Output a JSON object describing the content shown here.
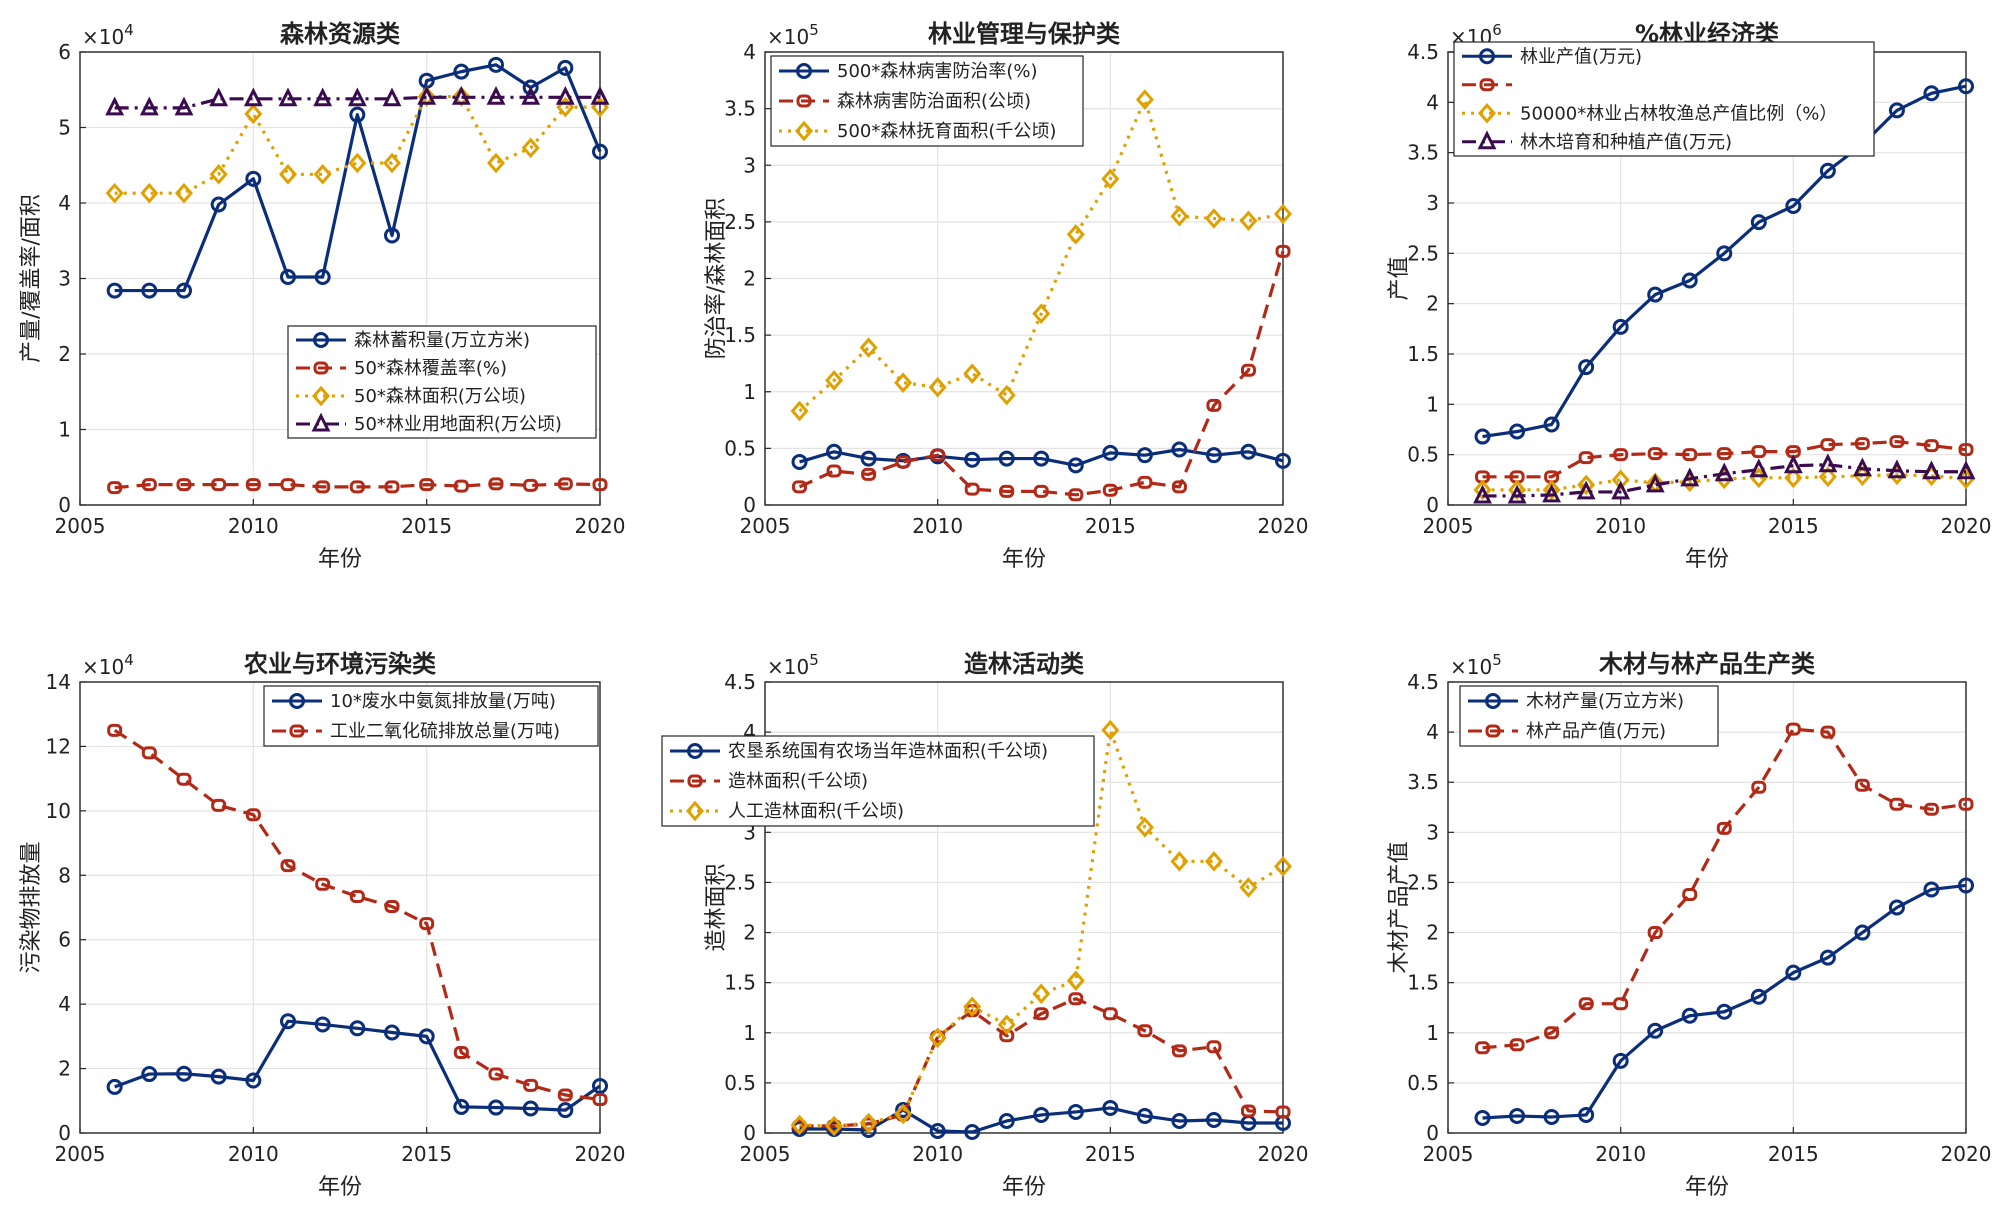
{
  "chart_data": [
    {
      "type": "line",
      "title": "森林资源类",
      "xlabel": "年份",
      "ylabel": "产量/覆盖率/面积",
      "x": [
        2006,
        2007,
        2008,
        2009,
        2010,
        2011,
        2012,
        2013,
        2014,
        2015,
        2016,
        2017,
        2018,
        2019,
        2020
      ],
      "xlim": [
        2005,
        2020
      ],
      "xticks": [
        2005,
        2010,
        2015,
        2020
      ],
      "ylim": [
        0,
        6
      ],
      "yticks": [
        0,
        1,
        2,
        3,
        4,
        5,
        6
      ],
      "exponent": "×10^4",
      "legend_position": "center-right",
      "series": [
        {
          "name": "森林蓄积量(万立方米)",
          "color": "#0b2e7a",
          "dash": "solid",
          "marker": "circle",
          "values": [
            2.84,
            2.84,
            2.84,
            3.98,
            4.32,
            3.02,
            3.02,
            5.17,
            3.57,
            5.62,
            5.74,
            5.83,
            5.53,
            5.79,
            4.68
          ]
        },
        {
          "name": "50*森林覆盖率(%)",
          "color": "#b22a17",
          "dash": "dash",
          "marker": "square",
          "values": [
            0.23,
            0.27,
            0.27,
            0.27,
            0.27,
            0.27,
            0.24,
            0.24,
            0.24,
            0.27,
            0.25,
            0.28,
            0.26,
            0.28,
            0.27
          ]
        },
        {
          "name": "50*森林面积(万公顷)",
          "color": "#e0a100",
          "dash": "dot",
          "marker": "diamond",
          "values": [
            4.13,
            4.13,
            4.13,
            4.38,
            5.18,
            4.38,
            4.38,
            4.53,
            4.53,
            5.41,
            5.41,
            4.53,
            4.73,
            5.27,
            5.27
          ]
        },
        {
          "name": "50*林业用地面积(万公顷)",
          "color": "#3b0b4f",
          "dash": "dashdot",
          "marker": "triangle",
          "values": [
            5.26,
            5.26,
            5.26,
            5.38,
            5.38,
            5.38,
            5.38,
            5.38,
            5.38,
            5.4,
            5.4,
            5.4,
            5.4,
            5.4,
            5.4
          ]
        }
      ]
    },
    {
      "type": "line",
      "title": "林业管理与保护类",
      "xlabel": "年份",
      "ylabel": "防治率/森林面积",
      "x": [
        2006,
        2007,
        2008,
        2009,
        2010,
        2011,
        2012,
        2013,
        2014,
        2015,
        2016,
        2017,
        2018,
        2019,
        2020
      ],
      "xlim": [
        2005,
        2020
      ],
      "xticks": [
        2005,
        2010,
        2015,
        2020
      ],
      "ylim": [
        0,
        4
      ],
      "yticks": [
        0,
        0.5,
        1,
        1.5,
        2,
        2.5,
        3,
        3.5,
        4
      ],
      "exponent": "×10^5",
      "legend_position": "top-left",
      "series": [
        {
          "name": "500*森林病害防治率(%)",
          "color": "#0b2e7a",
          "dash": "solid",
          "marker": "circle",
          "values": [
            0.38,
            0.47,
            0.41,
            0.39,
            0.43,
            0.4,
            0.41,
            0.41,
            0.35,
            0.46,
            0.44,
            0.49,
            0.44,
            0.47,
            0.39
          ]
        },
        {
          "name": "森林病害防治面积(公顷)",
          "color": "#b22a17",
          "dash": "dash",
          "marker": "square",
          "values": [
            0.16,
            0.3,
            0.27,
            0.38,
            0.44,
            0.14,
            0.12,
            0.12,
            0.09,
            0.13,
            0.2,
            0.16,
            0.88,
            1.19,
            2.24
          ]
        },
        {
          "name": "500*森林抚育面积(千公顷)",
          "color": "#e0a100",
          "dash": "dot",
          "marker": "diamond",
          "values": [
            0.83,
            1.1,
            1.39,
            1.08,
            1.04,
            1.16,
            0.97,
            1.69,
            2.39,
            2.88,
            3.58,
            2.55,
            2.53,
            2.51,
            2.57
          ]
        }
      ]
    },
    {
      "type": "line",
      "title": "%林业经济类",
      "xlabel": "年份",
      "ylabel": "产值",
      "x": [
        2006,
        2007,
        2008,
        2009,
        2010,
        2011,
        2012,
        2013,
        2014,
        2015,
        2016,
        2017,
        2018,
        2019,
        2020
      ],
      "xlim": [
        2005,
        2020
      ],
      "xticks": [
        2005,
        2010,
        2015,
        2020
      ],
      "ylim": [
        0,
        4.5
      ],
      "yticks": [
        0,
        0.5,
        1,
        1.5,
        2,
        2.5,
        3,
        3.5,
        4,
        4.5
      ],
      "exponent": "×10^6",
      "legend_position": "top-left",
      "series": [
        {
          "name": "林业产值(万元)",
          "color": "#0b2e7a",
          "dash": "solid",
          "marker": "circle",
          "values": [
            0.68,
            0.73,
            0.8,
            1.37,
            1.77,
            2.09,
            2.23,
            2.5,
            2.81,
            2.97,
            3.32,
            3.58,
            3.92,
            4.09,
            4.16
          ]
        },
        {
          "name": "",
          "color": "#b22a17",
          "dash": "dash",
          "marker": "square",
          "values": [
            0.28,
            0.28,
            0.28,
            0.47,
            0.5,
            0.51,
            0.5,
            0.51,
            0.53,
            0.53,
            0.6,
            0.61,
            0.63,
            0.59,
            0.55
          ]
        },
        {
          "name": "50000*林业占林牧渔总产值比例（%）",
          "color": "#e0a100",
          "dash": "dot",
          "marker": "diamond",
          "values": [
            0.15,
            0.15,
            0.15,
            0.2,
            0.25,
            0.22,
            0.23,
            0.26,
            0.27,
            0.27,
            0.28,
            0.29,
            0.3,
            0.29,
            0.26
          ]
        },
        {
          "name": "林木培育和种植产值(万元)",
          "color": "#3b0b4f",
          "dash": "dashdot",
          "marker": "triangle",
          "values": [
            0.09,
            0.09,
            0.1,
            0.13,
            0.13,
            0.2,
            0.26,
            0.31,
            0.35,
            0.39,
            0.4,
            0.36,
            0.34,
            0.33,
            0.33
          ]
        }
      ]
    },
    {
      "type": "line",
      "title": "农业与环境污染类",
      "xlabel": "年份",
      "ylabel": "污染物排放量",
      "x": [
        2006,
        2007,
        2008,
        2009,
        2010,
        2011,
        2012,
        2013,
        2014,
        2015,
        2016,
        2017,
        2018,
        2019,
        2020
      ],
      "xlim": [
        2005,
        2020
      ],
      "xticks": [
        2005,
        2010,
        2015,
        2020
      ],
      "ylim": [
        0,
        14
      ],
      "yticks": [
        0,
        2,
        4,
        6,
        8,
        10,
        12,
        14
      ],
      "exponent": "×10^4",
      "legend_position": "top-right",
      "series": [
        {
          "name": "10*废水中氨氮排放量(万吨)",
          "color": "#0b2e7a",
          "dash": "solid",
          "marker": "circle",
          "values": [
            1.43,
            1.83,
            1.84,
            1.75,
            1.63,
            3.47,
            3.37,
            3.25,
            3.12,
            3.0,
            0.81,
            0.79,
            0.76,
            0.71,
            1.46
          ]
        },
        {
          "name": "工业二氧化硫排放总量(万吨)",
          "color": "#b22a17",
          "dash": "dash",
          "marker": "square",
          "values": [
            12.5,
            11.8,
            10.98,
            10.17,
            9.88,
            8.3,
            7.72,
            7.34,
            7.03,
            6.5,
            2.5,
            1.83,
            1.48,
            1.18,
            1.04
          ]
        }
      ]
    },
    {
      "type": "line",
      "title": "造林活动类",
      "xlabel": "年份",
      "ylabel": "造林面积",
      "x": [
        2006,
        2007,
        2008,
        2009,
        2010,
        2011,
        2012,
        2013,
        2014,
        2015,
        2016,
        2017,
        2018,
        2019,
        2020
      ],
      "xlim": [
        2005,
        2020
      ],
      "xticks": [
        2005,
        2010,
        2015,
        2020
      ],
      "ylim": [
        0,
        4.5
      ],
      "yticks": [
        0,
        0.5,
        1,
        1.5,
        2,
        2.5,
        3,
        3.5,
        4,
        4.5
      ],
      "exponent": "×10^5",
      "legend_position": "top-left",
      "series": [
        {
          "name": "农垦系统国有农场当年造林面积(千公顷)",
          "color": "#0b2e7a",
          "dash": "solid",
          "marker": "circle",
          "values": [
            0.04,
            0.04,
            0.03,
            0.23,
            0.02,
            0.01,
            0.12,
            0.18,
            0.21,
            0.25,
            0.17,
            0.12,
            0.13,
            0.1,
            0.1
          ]
        },
        {
          "name": "造林面积(千公顷)",
          "color": "#b22a17",
          "dash": "dash",
          "marker": "square",
          "values": [
            0.07,
            0.07,
            0.09,
            0.18,
            0.96,
            1.22,
            0.97,
            1.19,
            1.34,
            1.19,
            1.02,
            0.82,
            0.86,
            0.22,
            0.21
          ]
        },
        {
          "name": "人工造林面积(千公顷)",
          "color": "#e0a100",
          "dash": "dot",
          "marker": "diamond",
          "values": [
            0.08,
            0.07,
            0.1,
            0.19,
            0.95,
            1.26,
            1.08,
            1.39,
            1.52,
            4.02,
            3.05,
            2.71,
            2.71,
            2.45,
            2.66
          ]
        }
      ]
    },
    {
      "type": "line",
      "title": "木材与林产品生产类",
      "xlabel": "年份",
      "ylabel": "木材产品产值",
      "x": [
        2006,
        2007,
        2008,
        2009,
        2010,
        2011,
        2012,
        2013,
        2014,
        2015,
        2016,
        2017,
        2018,
        2019,
        2020
      ],
      "xlim": [
        2005,
        2020
      ],
      "xticks": [
        2005,
        2010,
        2015,
        2020
      ],
      "ylim": [
        0,
        4.5
      ],
      "yticks": [
        0,
        0.5,
        1,
        1.5,
        2,
        2.5,
        3,
        3.5,
        4,
        4.5
      ],
      "exponent": "×10^5",
      "legend_position": "top-left",
      "series": [
        {
          "name": "木材产量(万立方米)",
          "color": "#0b2e7a",
          "dash": "solid",
          "marker": "circle",
          "values": [
            0.15,
            0.17,
            0.16,
            0.18,
            0.72,
            1.02,
            1.17,
            1.21,
            1.36,
            1.6,
            1.75,
            2.0,
            2.25,
            2.43,
            2.47
          ]
        },
        {
          "name": "林产品产值(万元)",
          "color": "#b22a17",
          "dash": "dash",
          "marker": "square",
          "values": [
            0.85,
            0.88,
            1.0,
            1.29,
            1.29,
            2.0,
            2.38,
            3.04,
            3.45,
            4.03,
            4.0,
            3.47,
            3.28,
            3.23,
            3.28
          ]
        }
      ]
    }
  ]
}
